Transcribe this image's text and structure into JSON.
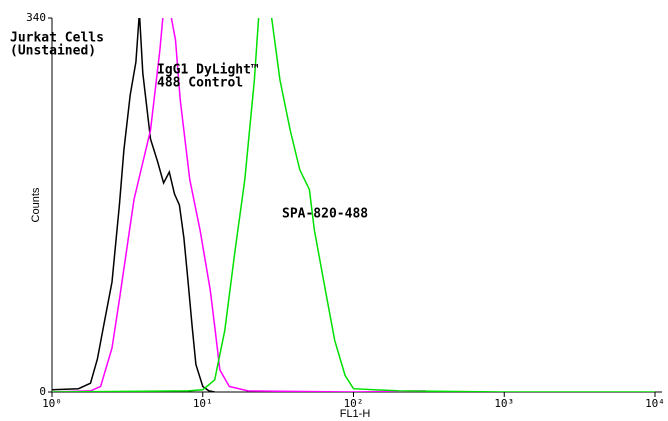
{
  "chart_data": {
    "type": "line",
    "xlabel": "FL1-H",
    "ylabel": "Counts",
    "xscale": "log",
    "xlim": [
      1,
      10000
    ],
    "ylim": [
      0,
      340
    ],
    "xticks": [
      {
        "value": 1,
        "label": "10⁰"
      },
      {
        "value": 10,
        "label": "10¹"
      },
      {
        "value": 100,
        "label": "10²"
      },
      {
        "value": 1000,
        "label": "10³"
      },
      {
        "value": 10000,
        "label": "10⁴"
      }
    ],
    "yticks": [
      0,
      340
    ],
    "annotations": [
      {
        "lines": [
          "Jurkat Cells",
          "(Unstained)"
        ]
      },
      {
        "lines": [
          "IgG1 DyLight™",
          "488 Control"
        ]
      },
      {
        "lines": [
          "SPA-820-488"
        ]
      }
    ],
    "series": [
      {
        "color": "#000000",
        "x": [
          1,
          1.5,
          1.8,
          2.0,
          2.2,
          2.5,
          2.8,
          3.0,
          3.3,
          3.6,
          3.8,
          4.0,
          4.5,
          5.0,
          5.5,
          6.0,
          6.5,
          7.0,
          7.5,
          8.0,
          8.5,
          9.0,
          10,
          11,
          12
        ],
        "values": [
          2,
          3,
          8,
          30,
          60,
          100,
          170,
          220,
          270,
          300,
          345,
          290,
          230,
          210,
          190,
          200,
          180,
          170,
          140,
          100,
          60,
          25,
          5,
          1,
          0
        ]
      },
      {
        "color": "#ff00ff",
        "x": [
          1,
          1.8,
          2.1,
          2.5,
          2.8,
          3.5,
          4.5,
          5.2,
          5.6,
          6.0,
          6.6,
          7.1,
          8.2,
          9.6,
          11.2,
          12.1,
          13,
          15,
          20,
          100,
          300
        ],
        "values": [
          0,
          1,
          5,
          40,
          84,
          175,
          238,
          311,
          360,
          350,
          320,
          265,
          193,
          147,
          93,
          56,
          20,
          5,
          1,
          0,
          1
        ]
      },
      {
        "color": "#00e000",
        "x": [
          1,
          8,
          10,
          12,
          14,
          16.4,
          19,
          22,
          24,
          28,
          32.5,
          38,
          44,
          51,
          55,
          65,
          75,
          88,
          100,
          200,
          1000,
          10000
        ],
        "values": [
          0,
          1,
          2,
          11,
          56,
          129,
          193,
          284,
          360,
          350,
          284,
          238,
          202,
          184,
          147,
          93,
          47,
          15,
          3,
          1,
          0,
          0
        ]
      }
    ]
  }
}
